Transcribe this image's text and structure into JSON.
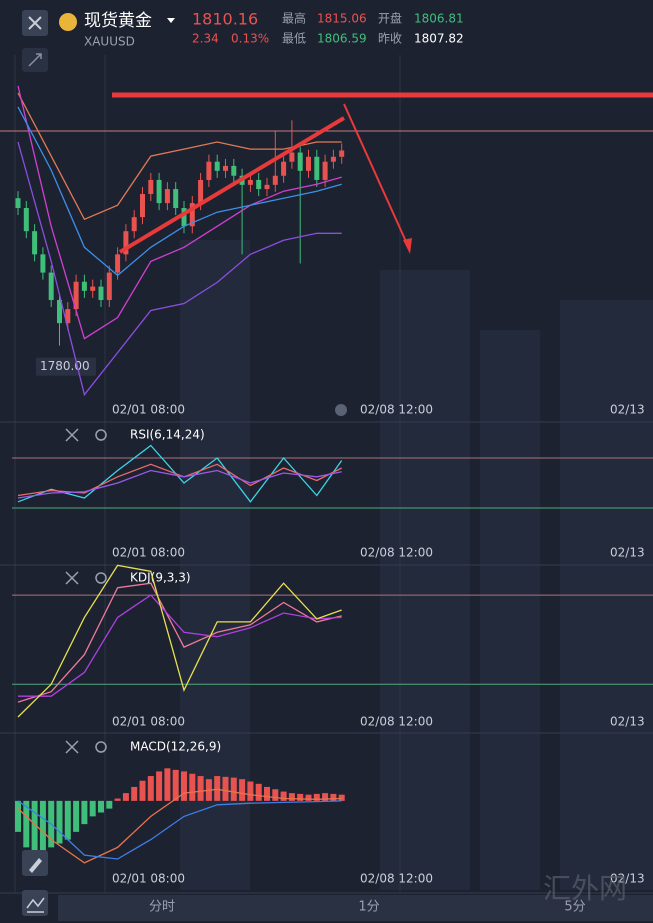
{
  "header": {
    "name": "现货黄金",
    "symbol": "XAUUSD",
    "price": "1810.16",
    "change": "2.34",
    "change_pct": "0.13%",
    "high_label": "最高",
    "high": "1815.06",
    "open_label": "开盘",
    "open": "1806.81",
    "low_label": "最低",
    "low": "1806.59",
    "prev_label": "昨收",
    "prev": "1807.82"
  },
  "tabs": [
    "分时",
    "1分",
    "5分"
  ],
  "watermark": "汇外网",
  "chart_data": [
    {
      "type": "candlestick",
      "ylim": [
        1772.4,
        1824.4
      ],
      "yticks": [
        {
          "value": 1780,
          "label": "1780.00"
        }
      ],
      "up_color": "#e8534f",
      "down_color": "#3fbf7a",
      "xlabels": [
        "02/01 08:00",
        "02/08 12:00",
        "02/13"
      ],
      "candles": [
        [
          1804.0,
          1805.0,
          1801.6,
          1802.6
        ],
        [
          1802.6,
          1803.6,
          1798.3,
          1799.3
        ],
        [
          1799.3,
          1800.3,
          1795.0,
          1796.0
        ],
        [
          1796.0,
          1797.0,
          1792.4,
          1793.4
        ],
        [
          1793.4,
          1794.4,
          1788.5,
          1789.5
        ],
        [
          1789.5,
          1790.5,
          1783.0,
          1786.2
        ],
        [
          1786.2,
          1789.2,
          1785.2,
          1788.2
        ],
        [
          1788.2,
          1793.1,
          1787.2,
          1792.1
        ],
        [
          1792.1,
          1793.1,
          1789.8,
          1790.8
        ],
        [
          1790.8,
          1792.4,
          1789.8,
          1791.4
        ],
        [
          1791.4,
          1792.4,
          1788.5,
          1789.5
        ],
        [
          1789.5,
          1794.4,
          1788.5,
          1793.4
        ],
        [
          1793.4,
          1797.0,
          1792.4,
          1796.0
        ],
        [
          1796.0,
          1800.3,
          1795.0,
          1799.3
        ],
        [
          1799.3,
          1802.3,
          1798.3,
          1801.3
        ],
        [
          1801.3,
          1805.6,
          1800.3,
          1804.6
        ],
        [
          1804.6,
          1807.6,
          1803.6,
          1806.6
        ],
        [
          1806.6,
          1807.6,
          1802.3,
          1803.3
        ],
        [
          1803.3,
          1806.3,
          1802.3,
          1805.3
        ],
        [
          1805.3,
          1806.3,
          1801.6,
          1802.6
        ],
        [
          1802.6,
          1803.6,
          1799.0,
          1800.0
        ],
        [
          1800.0,
          1804.3,
          1799.0,
          1803.3
        ],
        [
          1803.3,
          1807.6,
          1802.3,
          1806.6
        ],
        [
          1806.6,
          1810.2,
          1805.6,
          1809.2
        ],
        [
          1809.2,
          1810.2,
          1806.9,
          1807.9
        ],
        [
          1807.9,
          1809.6,
          1806.9,
          1808.6
        ],
        [
          1808.6,
          1809.6,
          1806.2,
          1807.2
        ],
        [
          1807.2,
          1808.2,
          1796.0,
          1805.9
        ],
        [
          1805.9,
          1807.6,
          1804.9,
          1806.6
        ],
        [
          1806.6,
          1807.6,
          1804.3,
          1805.3
        ],
        [
          1805.3,
          1806.9,
          1804.3,
          1805.9
        ],
        [
          1805.9,
          1813.5,
          1804.9,
          1807.2
        ],
        [
          1807.2,
          1810.2,
          1806.2,
          1809.2
        ],
        [
          1809.2,
          1815.1,
          1808.2,
          1810.5
        ],
        [
          1810.5,
          1811.5,
          1794.7,
          1807.9
        ],
        [
          1807.9,
          1810.9,
          1806.9,
          1809.9
        ],
        [
          1809.9,
          1810.9,
          1805.6,
          1806.6
        ],
        [
          1806.6,
          1810.2,
          1805.6,
          1809.2
        ],
        [
          1809.2,
          1810.9,
          1808.2,
          1809.9
        ],
        [
          1809.9,
          1811.8,
          1808.9,
          1810.8
        ]
      ],
      "line_x": [
        0,
        4,
        8,
        12,
        16,
        20,
        24,
        28,
        32,
        36,
        39
      ],
      "series": [
        {
          "color": "#e07a55",
          "values": [
            1819,
            1810,
            1801,
            1803,
            1810,
            1811,
            1812,
            1811,
            1811,
            1812,
            1812
          ]
        },
        {
          "color": "#d040d0",
          "values": [
            1820,
            1800,
            1784,
            1787,
            1795,
            1797,
            1800,
            1803,
            1805,
            1806,
            1807
          ]
        },
        {
          "color": "#3d8fe8",
          "values": [
            1817,
            1808,
            1797,
            1793,
            1797,
            1800,
            1802,
            1803,
            1804,
            1805,
            1806
          ]
        },
        {
          "color": "#8a4fe0",
          "values": [
            1812,
            1795,
            1776,
            1782,
            1788,
            1789,
            1792,
            1796,
            1798,
            1799,
            1799
          ]
        }
      ]
    },
    {
      "type": "line",
      "title": "RSI(6,14,24)",
      "ylim": [
        0,
        100
      ],
      "ref_lines": [
        70,
        30
      ],
      "xlabels": [
        "02/01 08:00",
        "02/08 12:00",
        "02/13"
      ],
      "line_x": [
        0,
        4,
        8,
        12,
        16,
        20,
        24,
        28,
        32,
        36,
        39
      ],
      "series": [
        {
          "color": "#3ad6e8",
          "values": [
            35,
            45,
            38,
            60,
            80,
            50,
            70,
            35,
            70,
            40,
            68
          ]
        },
        {
          "color": "#e86a6a",
          "values": [
            40,
            44,
            42,
            55,
            65,
            55,
            65,
            48,
            62,
            52,
            62
          ]
        },
        {
          "color": "#9a5ae8",
          "values": [
            38,
            42,
            43,
            50,
            60,
            55,
            60,
            50,
            58,
            55,
            59
          ]
        }
      ]
    },
    {
      "type": "line",
      "title": "KDJ(9,3,3)",
      "ylim": [
        0,
        100
      ],
      "ref_lines": [
        80,
        20
      ],
      "xlabels": [
        "02/01 08:00",
        "02/08 12:00",
        "02/13"
      ],
      "line_x": [
        0,
        4,
        8,
        12,
        16,
        20,
        24,
        28,
        32,
        36,
        39
      ],
      "series": [
        {
          "color": "#f07a9a",
          "values": [
            8,
            15,
            40,
            85,
            88,
            45,
            55,
            60,
            75,
            62,
            66
          ]
        },
        {
          "color": "#b040e0",
          "values": [
            12,
            12,
            28,
            65,
            80,
            55,
            52,
            58,
            68,
            64,
            65
          ]
        },
        {
          "color": "#e8e050",
          "values": [
            -2,
            20,
            65,
            100,
            96,
            16,
            62,
            62,
            88,
            64,
            70
          ]
        }
      ]
    },
    {
      "type": "bar",
      "title": "MACD(12,26,9)",
      "ylim": [
        -11.5,
        8.5
      ],
      "up_color": "#e8534f",
      "down_color": "#3fbf7a",
      "xlabels": [
        "02/01 08:00",
        "02/08 12:00",
        "02/13"
      ],
      "histogram": [
        -4,
        -6,
        -7,
        -6.5,
        -6,
        -5.5,
        -5,
        -4,
        -3,
        -2,
        -1.5,
        -1,
        0.3,
        1,
        1.8,
        2.6,
        3.2,
        3.8,
        4.2,
        4,
        3.8,
        3.5,
        3.2,
        2.8,
        3.2,
        3.1,
        3,
        2.8,
        2.5,
        2.2,
        1.8,
        1.5,
        1.2,
        1,
        0.9,
        0.8,
        0.9,
        1,
        0.9,
        0.8
      ],
      "line_x": [
        0,
        4,
        8,
        12,
        16,
        20,
        24,
        28,
        32,
        36,
        39
      ],
      "series": [
        {
          "color": "#e8734a",
          "values": [
            -1,
            -5,
            -8,
            -6,
            -2,
            1,
            1.5,
            0.8,
            0.3,
            0.2,
            0.3
          ]
        },
        {
          "color": "#3d7fe8",
          "values": [
            0,
            -3,
            -7,
            -7.5,
            -5,
            -2,
            -0.5,
            -0.3,
            -0.2,
            -0.1,
            0
          ]
        }
      ]
    }
  ]
}
